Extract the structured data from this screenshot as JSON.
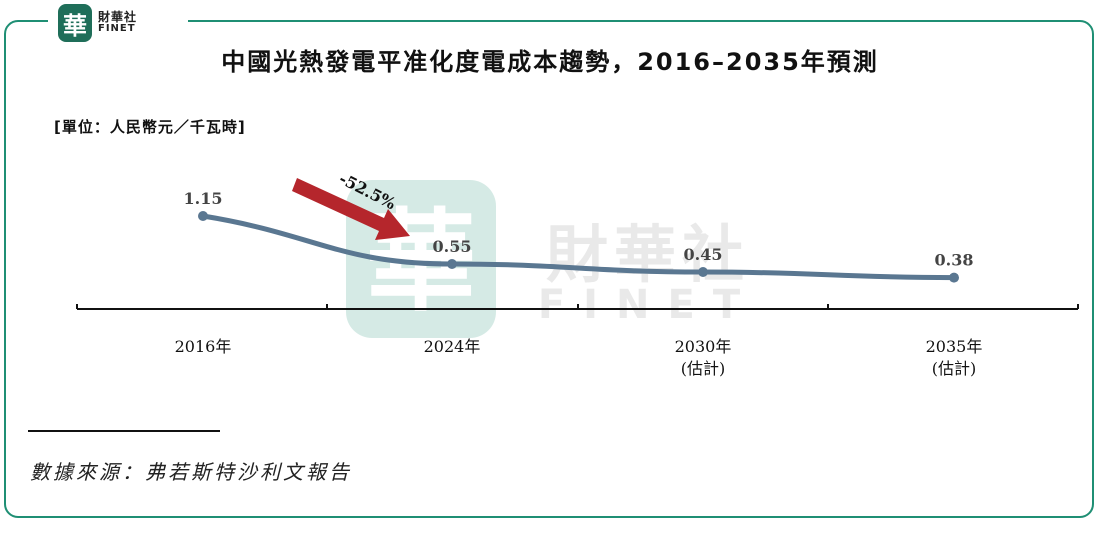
{
  "brand": {
    "mark": "華",
    "name_cn": "財華社",
    "name_en": "FINET"
  },
  "watermark": {
    "mark": "華",
    "cn": "財華社",
    "en": "FINET"
  },
  "colors": {
    "frame": "#1f8f74",
    "line": "#5a7791",
    "arrow": "#b5262c",
    "brand_green": "#1f6e59"
  },
  "chart_data": {
    "type": "line",
    "title": "中國光熱發電平准化度電成本趨勢，2016–2035年預測",
    "unit_label": "[單位：人民幣元／千瓦時]",
    "categories": [
      {
        "line1": "2016年",
        "line2": ""
      },
      {
        "line1": "2024年",
        "line2": ""
      },
      {
        "line1": "2030年",
        "line2": "(估計)"
      },
      {
        "line1": "2035年",
        "line2": "(估計)"
      }
    ],
    "values": [
      1.15,
      0.55,
      0.45,
      0.38
    ],
    "value_labels": [
      "1.15",
      "0.55",
      "0.45",
      "0.38"
    ],
    "ylim": [
      0,
      1.5
    ],
    "annotation": {
      "text": "-52.5%",
      "from_index": 0,
      "to_index": 1
    },
    "grid": false
  },
  "source": "數據來源：弗若斯特沙利文報告"
}
